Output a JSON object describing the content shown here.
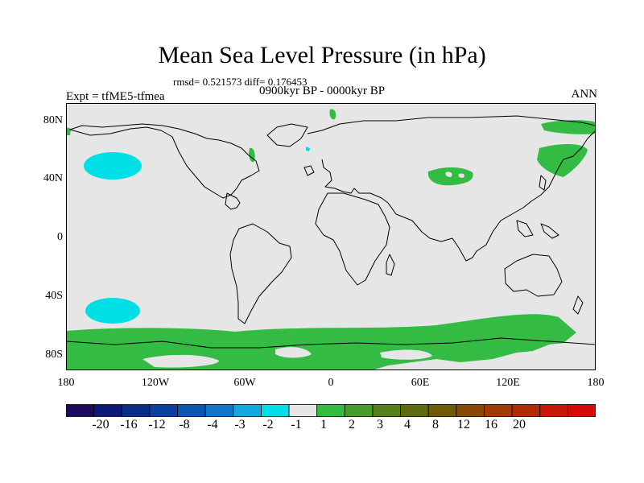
{
  "header": {
    "title": "Mean Sea Level Pressure (in hPa)",
    "stats": "rmsd= 0.521573 diff= 0.176453",
    "experiment": "Expt = tfME5-tfmea",
    "period": "0900kyr BP - 0000kyr BP",
    "season": "ANN"
  },
  "axes": {
    "lat_labels": [
      "80N",
      "40N",
      "0",
      "40S",
      "80S"
    ],
    "lon_labels": [
      "180",
      "120W",
      "60W",
      "0",
      "60E",
      "120E",
      "180"
    ]
  },
  "colors": {
    "background": "#e6e6e6",
    "cyan_fill": "#00dfe6",
    "green_fill": "#33bb44",
    "coast": "#000000"
  },
  "colorbar": {
    "colors": [
      "#1e0a5a",
      "#0b1a78",
      "#0a2d8c",
      "#0b3fa0",
      "#0a55b4",
      "#1275cc",
      "#12a8e0",
      "#00dfe6",
      "#e6e6e6",
      "#33bb44",
      "#4a9a2a",
      "#577f1a",
      "#5f6b10",
      "#6e5a08",
      "#8a4808",
      "#a23a08",
      "#b32a08",
      "#c81808",
      "#d40a0a"
    ],
    "labels": [
      "-20",
      "-16",
      "-12",
      "-8",
      "-4",
      "-3",
      "-2",
      "-1",
      "1",
      "2",
      "3",
      "4",
      "8",
      "12",
      "16",
      "20"
    ]
  }
}
